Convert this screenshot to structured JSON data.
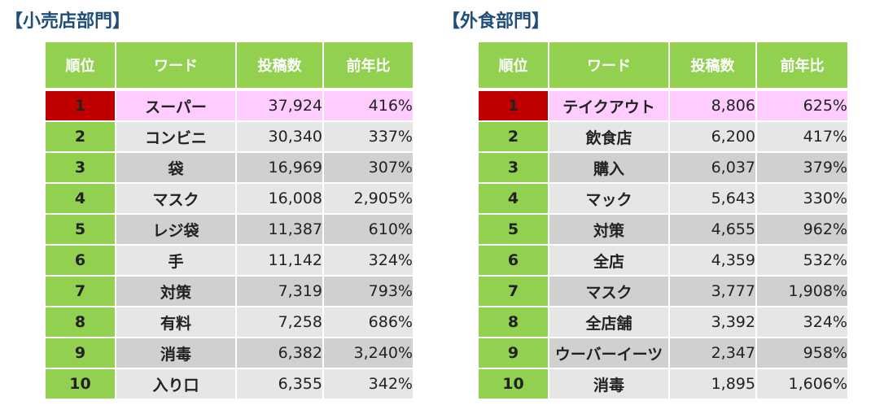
{
  "sections": [
    {
      "title": "【小売店部門】",
      "headers": [
        "順位",
        "ワード",
        "投稿数",
        "前年比"
      ],
      "rows": [
        {
          "rank": "1",
          "word": "スーパー",
          "posts": "37,924",
          "yoy": "416%"
        },
        {
          "rank": "2",
          "word": "コンビニ",
          "posts": "30,340",
          "yoy": "337%"
        },
        {
          "rank": "3",
          "word": "袋",
          "posts": "16,969",
          "yoy": "307%"
        },
        {
          "rank": "4",
          "word": "マスク",
          "posts": "16,008",
          "yoy": "2,905%"
        },
        {
          "rank": "5",
          "word": "レジ袋",
          "posts": "11,387",
          "yoy": "610%"
        },
        {
          "rank": "6",
          "word": "手",
          "posts": "11,142",
          "yoy": "324%"
        },
        {
          "rank": "7",
          "word": "対策",
          "posts": "7,319",
          "yoy": "793%"
        },
        {
          "rank": "8",
          "word": "有料",
          "posts": "7,258",
          "yoy": "686%"
        },
        {
          "rank": "9",
          "word": "消毒",
          "posts": "6,382",
          "yoy": "3,240%"
        },
        {
          "rank": "10",
          "word": "入り口",
          "posts": "6,355",
          "yoy": "342%"
        }
      ]
    },
    {
      "title": "【外食部門】",
      "headers": [
        "順位",
        "ワード",
        "投稿数",
        "前年比"
      ],
      "rows": [
        {
          "rank": "1",
          "word": "テイクアウト",
          "posts": "8,806",
          "yoy": "625%"
        },
        {
          "rank": "2",
          "word": "飲食店",
          "posts": "6,200",
          "yoy": "417%"
        },
        {
          "rank": "3",
          "word": "購入",
          "posts": "6,037",
          "yoy": "379%"
        },
        {
          "rank": "4",
          "word": "マック",
          "posts": "5,643",
          "yoy": "330%"
        },
        {
          "rank": "5",
          "word": "対策",
          "posts": "4,655",
          "yoy": "962%"
        },
        {
          "rank": "6",
          "word": "全店",
          "posts": "4,359",
          "yoy": "532%"
        },
        {
          "rank": "7",
          "word": "マスク",
          "posts": "3,777",
          "yoy": "1,908%"
        },
        {
          "rank": "8",
          "word": "全店舗",
          "posts": "3,392",
          "yoy": "324%"
        },
        {
          "rank": "9",
          "word": "ウーバーイーツ",
          "posts": "2,347",
          "yoy": "958%"
        },
        {
          "rank": "10",
          "word": "消毒",
          "posts": "1,895",
          "yoy": "1,606%"
        }
      ]
    }
  ],
  "colors": {
    "header_green": "#92d050",
    "rank_top_red": "#c00000",
    "top_row_pink": "#ffccff",
    "title_blue": "#1f4e79"
  }
}
